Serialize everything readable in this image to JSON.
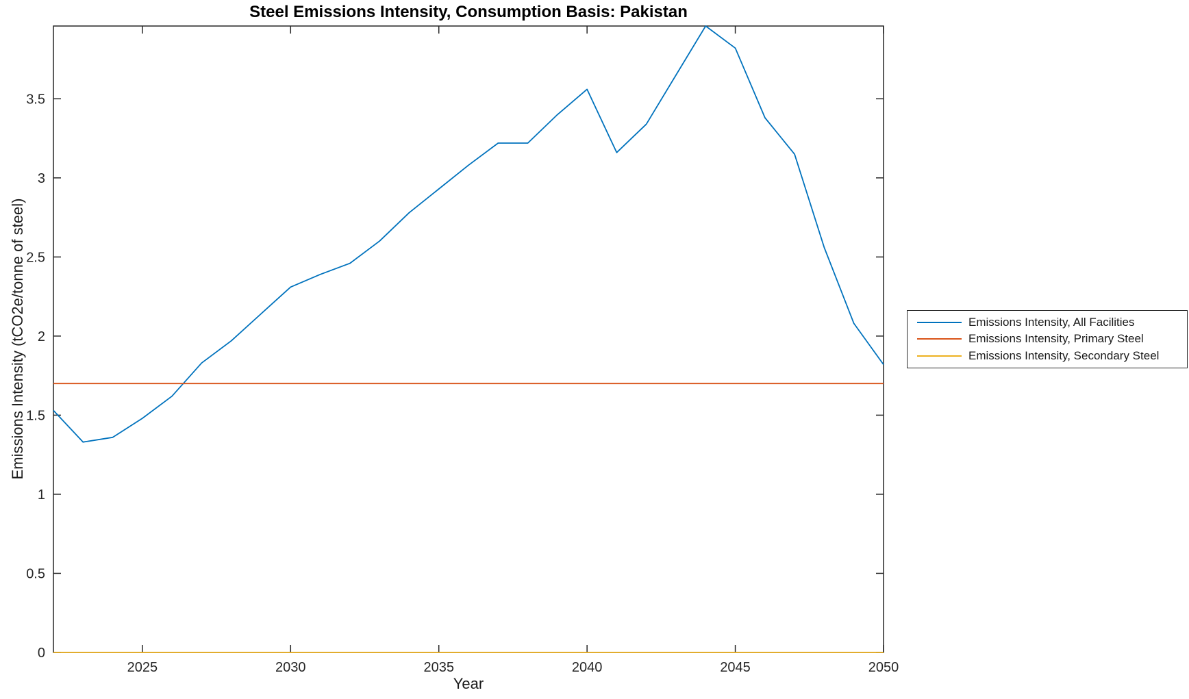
{
  "figure": {
    "background": "#ffffff",
    "axes_color": "#262626",
    "tick_label_color": "#262626"
  },
  "chart_data": {
    "type": "line",
    "title": "Steel Emissions Intensity, Consumption Basis: Pakistan",
    "xlabel": "Year",
    "ylabel": "Emissions Intensity (tCO2e/tonne of steel)",
    "xlim": [
      2022,
      2050
    ],
    "ylim": [
      0,
      3.96
    ],
    "xticks": [
      2025,
      2030,
      2035,
      2040,
      2045,
      2050
    ],
    "xtick_labels": [
      "2025",
      "2030",
      "2035",
      "2040",
      "2045",
      "2050"
    ],
    "yticks": [
      0,
      0.5,
      1,
      1.5,
      2,
      2.5,
      3,
      3.5
    ],
    "ytick_labels": [
      "0",
      "0.5",
      "1",
      "1.5",
      "2",
      "2.5",
      "3",
      "3.5"
    ],
    "grid": false,
    "box": true,
    "legend_position": "outside-right",
    "x": [
      2022,
      2023,
      2024,
      2025,
      2026,
      2027,
      2028,
      2029,
      2030,
      2031,
      2032,
      2033,
      2034,
      2035,
      2036,
      2037,
      2038,
      2039,
      2040,
      2041,
      2042,
      2043,
      2044,
      2045,
      2046,
      2047,
      2048,
      2049,
      2050
    ],
    "series": [
      {
        "name": "Emissions Intensity, All Facilities",
        "color": "#0072BD",
        "values": [
          1.53,
          1.33,
          1.36,
          1.48,
          1.62,
          1.83,
          1.97,
          2.14,
          2.31,
          2.39,
          2.46,
          2.6,
          2.78,
          2.93,
          3.08,
          3.22,
          3.22,
          3.4,
          3.56,
          3.16,
          3.34,
          3.65,
          3.96,
          3.82,
          3.38,
          3.15,
          2.56,
          2.08,
          1.82
        ]
      },
      {
        "name": "Emissions Intensity, Primary Steel",
        "color": "#D95319",
        "values": [
          1.7,
          1.7,
          1.7,
          1.7,
          1.7,
          1.7,
          1.7,
          1.7,
          1.7,
          1.7,
          1.7,
          1.7,
          1.7,
          1.7,
          1.7,
          1.7,
          1.7,
          1.7,
          1.7,
          1.7,
          1.7,
          1.7,
          1.7,
          1.7,
          1.7,
          1.7,
          1.7,
          1.7,
          1.7
        ]
      },
      {
        "name": "Emissions Intensity, Secondary Steel",
        "color": "#EDB120",
        "values": [
          0,
          0,
          0,
          0,
          0,
          0,
          0,
          0,
          0,
          0,
          0,
          0,
          0,
          0,
          0,
          0,
          0,
          0,
          0,
          0,
          0,
          0,
          0,
          0,
          0,
          0,
          0,
          0,
          0
        ]
      }
    ]
  }
}
